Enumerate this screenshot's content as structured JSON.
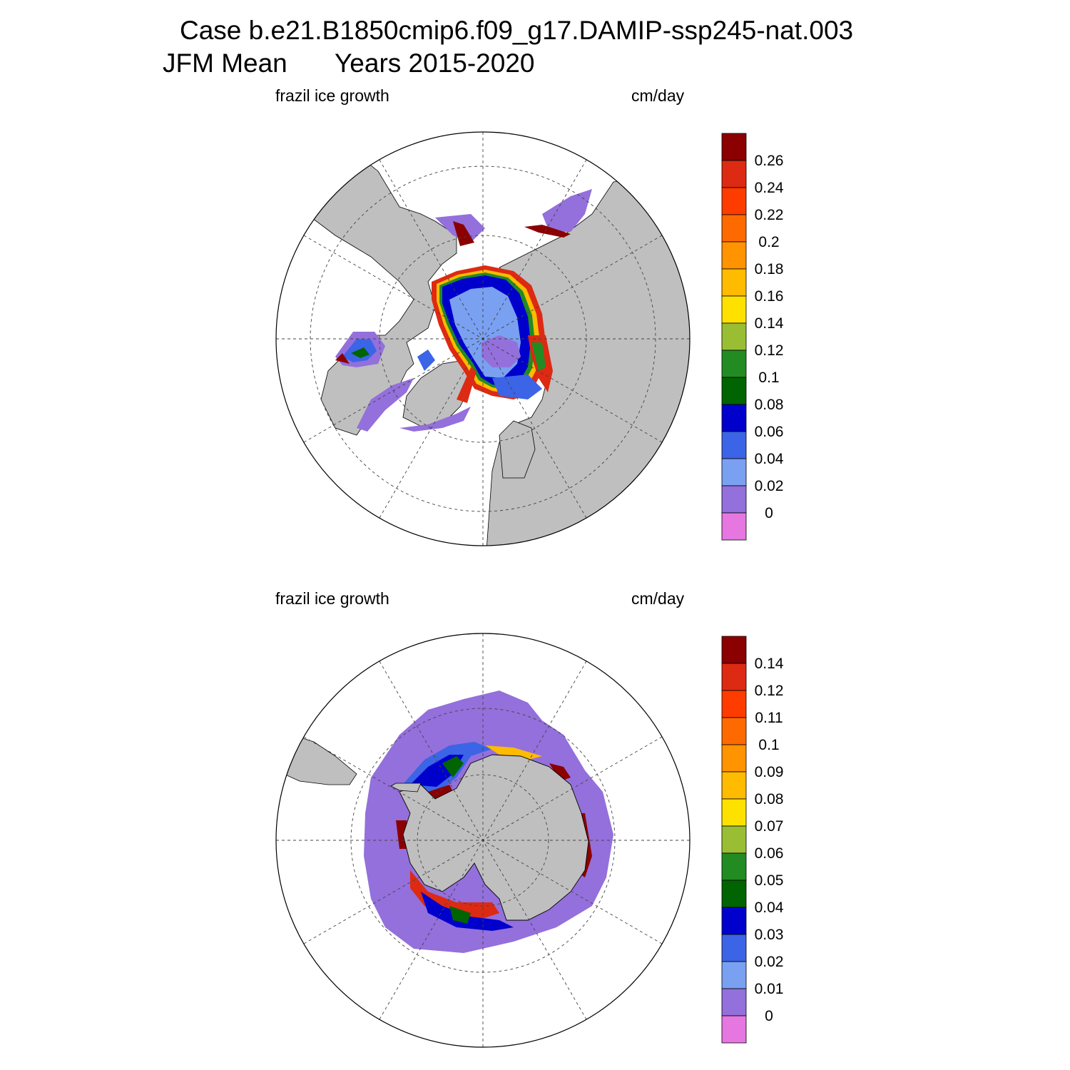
{
  "title": {
    "line1": "Case b.e21.B1850cmip6.f09_g17.DAMIP-ssp245-nat.003",
    "line2_left": "JFM Mean",
    "line2_right": "Years 2015-2020"
  },
  "panels": [
    {
      "hemisphere": "north",
      "variable": "frazil ice growth",
      "units": "cm/day",
      "colorbar": {
        "labels": [
          "0.26",
          "0.24",
          "0.22",
          "0.2",
          "0.18",
          "0.16",
          "0.14",
          "0.12",
          "0.1",
          "0.08",
          "0.06",
          "0.04",
          "0.02",
          "0"
        ],
        "colors": [
          "#8b0000",
          "#dd2a12",
          "#ff3c00",
          "#ff6a00",
          "#ff9300",
          "#ffbb00",
          "#ffe100",
          "#9abe33",
          "#228b22",
          "#006400",
          "#0000cd",
          "#3c64e6",
          "#7aa0f2",
          "#9370db",
          "#e677e0"
        ]
      }
    },
    {
      "hemisphere": "south",
      "variable": "frazil ice growth",
      "units": "cm/day",
      "colorbar": {
        "labels": [
          "0.14",
          "0.12",
          "0.11",
          "0.1",
          "0.09",
          "0.08",
          "0.07",
          "0.06",
          "0.05",
          "0.04",
          "0.03",
          "0.02",
          "0.01",
          "0"
        ],
        "colors": [
          "#8b0000",
          "#dd2a12",
          "#ff3c00",
          "#ff6a00",
          "#ff9300",
          "#ffbb00",
          "#ffe100",
          "#9abe33",
          "#228b22",
          "#006400",
          "#0000cd",
          "#3c64e6",
          "#7aa0f2",
          "#9370db",
          "#e677e0"
        ]
      }
    }
  ],
  "colors": {
    "land": "#bfbfbf",
    "ocean": "#ffffff",
    "outline": "#000000"
  }
}
